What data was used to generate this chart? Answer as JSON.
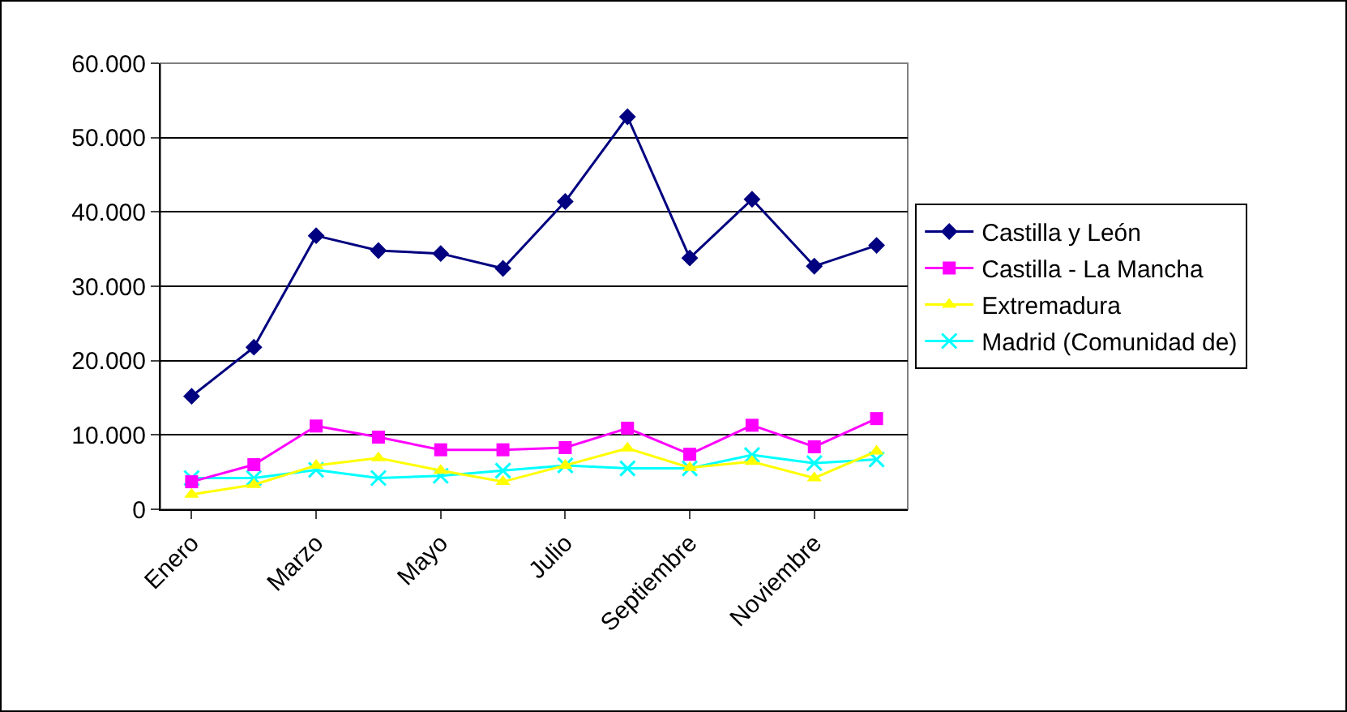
{
  "chart_data": {
    "type": "line",
    "categories": [
      "Enero",
      null,
      "Marzo",
      null,
      "Mayo",
      null,
      "Julio",
      null,
      "Septiembre",
      null,
      "Noviembre",
      null
    ],
    "series": [
      {
        "name": "Castilla y León",
        "color": "#000080",
        "marker": "diamond",
        "values": [
          15200,
          21800,
          36800,
          34800,
          34400,
          32400,
          41400,
          52800,
          33800,
          41700,
          32700,
          35500
        ]
      },
      {
        "name": "Castilla - La Mancha",
        "color": "#ff00ff",
        "marker": "square",
        "values": [
          3700,
          6000,
          11200,
          9700,
          8000,
          8000,
          8300,
          10900,
          7400,
          11300,
          8400,
          12200
        ]
      },
      {
        "name": "Extremadura",
        "color": "#ffff00",
        "marker": "triangle",
        "values": [
          2000,
          3300,
          5900,
          6900,
          5200,
          3700,
          5900,
          8200,
          5600,
          6400,
          4200,
          7800
        ]
      },
      {
        "name": "Madrid (Comunidad de)",
        "color": "#00ffff",
        "marker": "cross",
        "values": [
          4200,
          4200,
          5300,
          4200,
          4500,
          5200,
          5900,
          5500,
          5500,
          7300,
          6200,
          6700
        ]
      }
    ],
    "ylim": [
      0,
      60000
    ],
    "yticks": [
      0,
      {
        "value": 10000,
        "label": "10.000"
      },
      {
        "value": 20000,
        "label": "20.000"
      },
      {
        "value": 30000,
        "label": "30.000"
      },
      {
        "value": 40000,
        "label": "40.000"
      },
      {
        "value": 50000,
        "label": "50.000"
      },
      {
        "value": 60000,
        "label": "60.000"
      }
    ],
    "grid": "y",
    "legend": "right"
  }
}
